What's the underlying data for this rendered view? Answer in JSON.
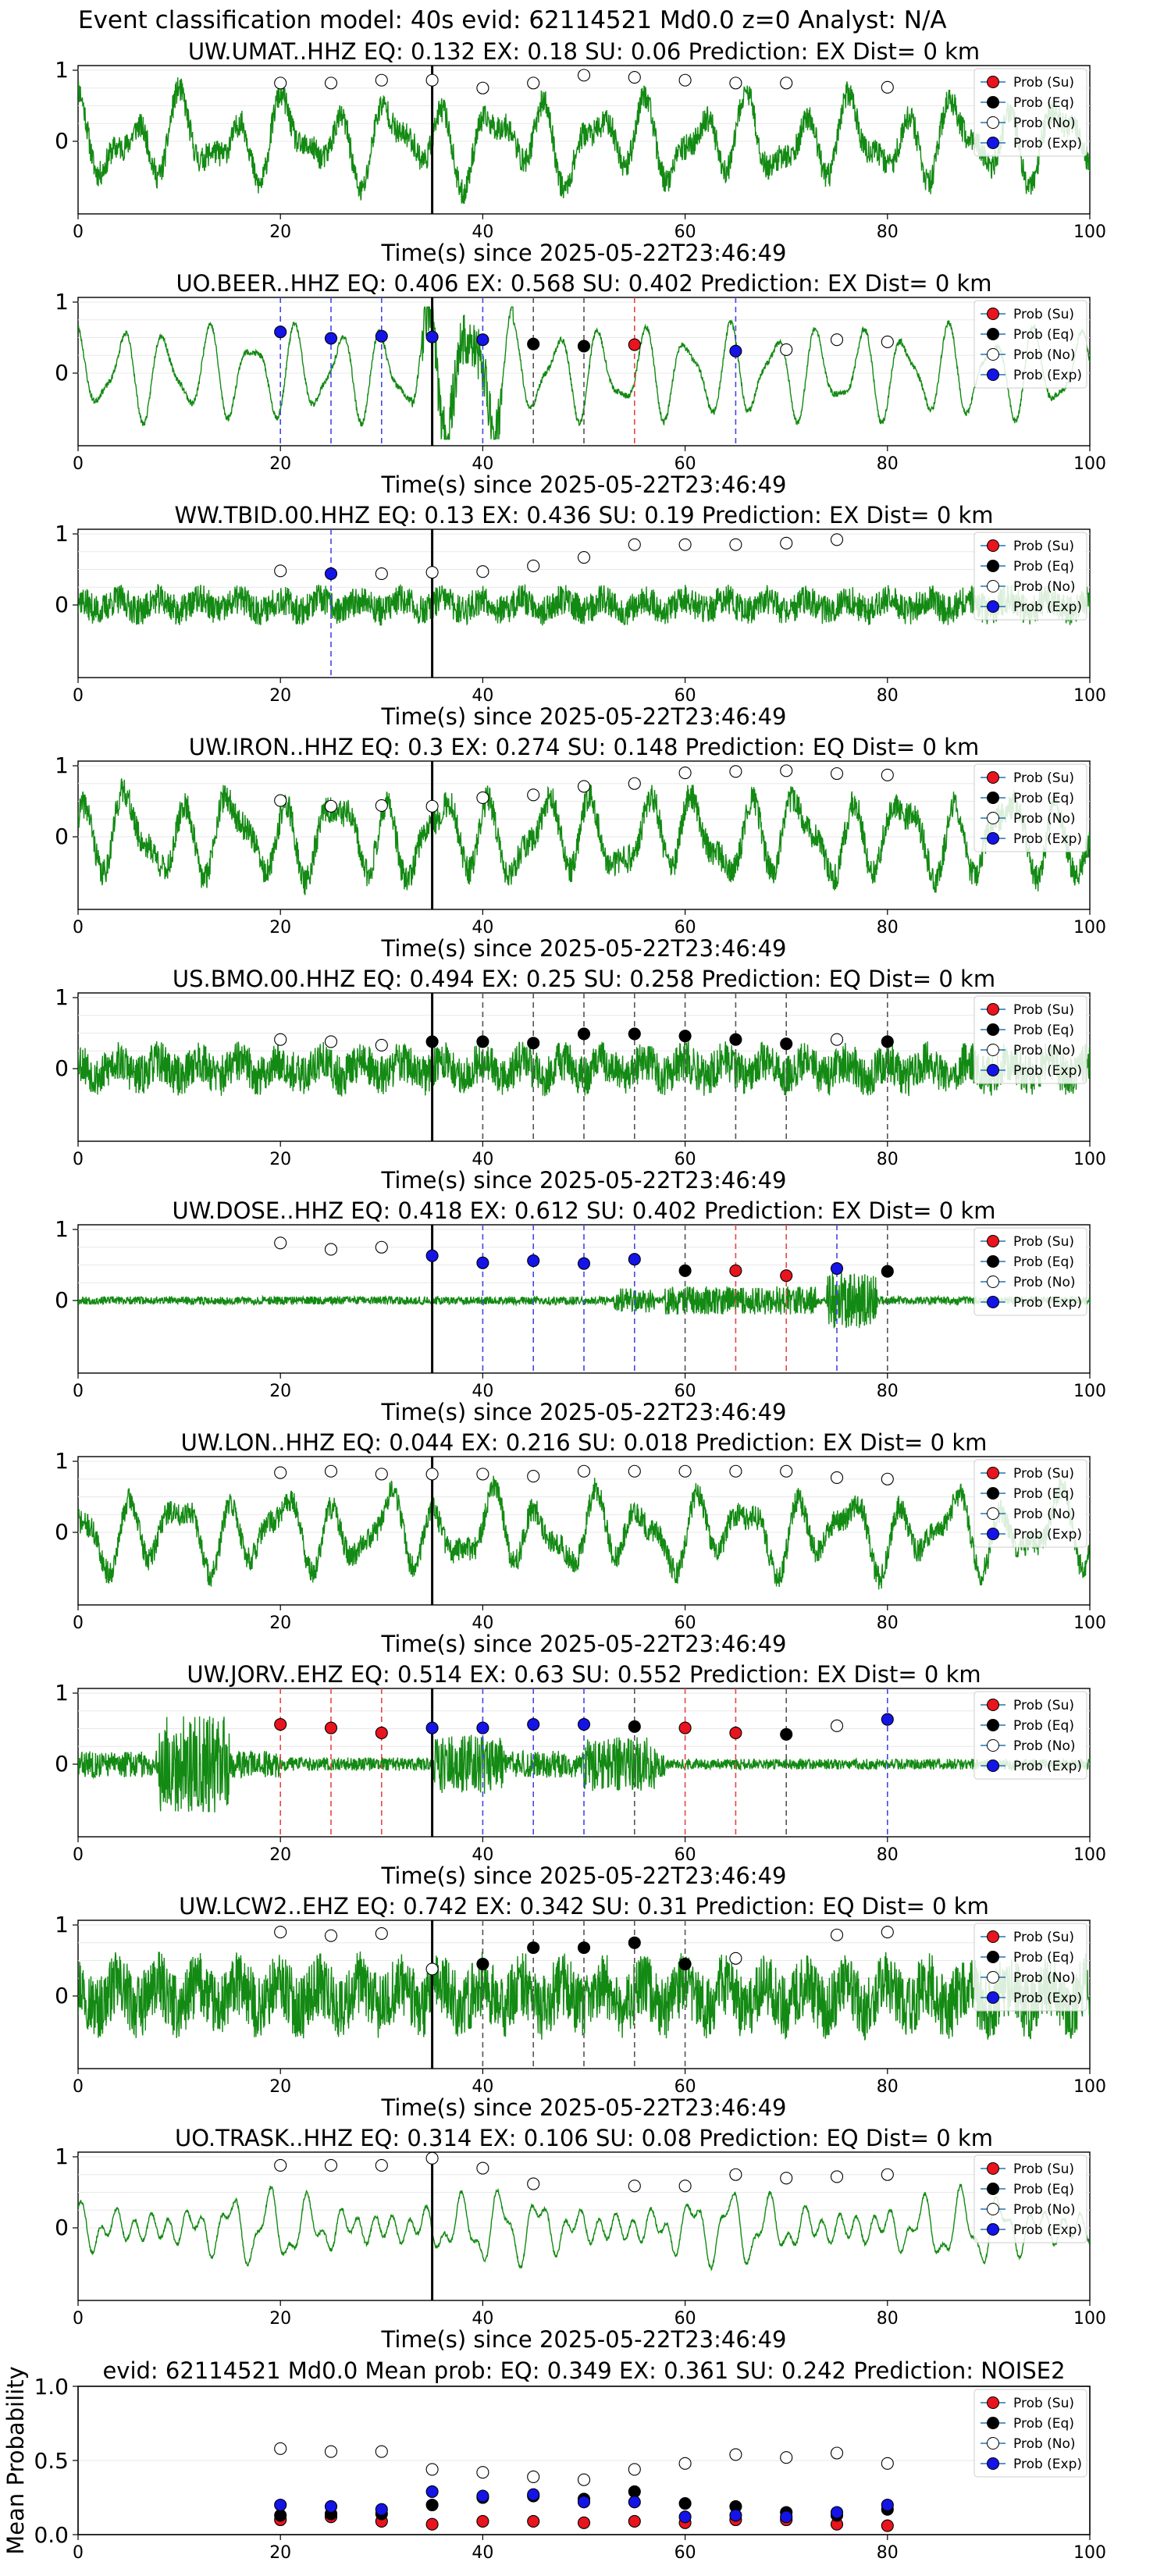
{
  "figure": {
    "suptitle": "Event classification model: 40s evid: 62114521 Md0.0 z=0 Analyst: N/A",
    "xlabel": "Time(s) since 2025-05-22T23:46:49"
  },
  "legend": {
    "entries": [
      {
        "label": "Prob (Su)",
        "color": "#e8141e"
      },
      {
        "label": "Prob (Eq)",
        "color": "#000000"
      },
      {
        "label": "Prob (No)",
        "color": "#ffffff"
      },
      {
        "label": "Prob (Exp)",
        "color": "#1414e6"
      }
    ]
  },
  "colors": {
    "waveform": "#138a13",
    "su": "#e8141e",
    "eq": "#000000",
    "no": "#ffffff",
    "exp": "#1414e6",
    "vline_su": "#e64646",
    "vline_eq": "#555555",
    "vline_exp": "#4646e6"
  },
  "chart_data": [
    {
      "type": "line",
      "station": "UW.UMAT..HHZ",
      "title": "UW.UMAT..HHZ   EQ: 0.132  EX: 0.18  SU: 0.06   Prediction: EX    Dist= 0 km",
      "xlim": [
        0,
        100
      ],
      "x_ticks": [
        0,
        20,
        40,
        60,
        80,
        100
      ],
      "y_ticks": [
        0,
        1
      ],
      "arrival_time": 35,
      "waveform": {
        "style": "lowfreq",
        "amp": 0.7,
        "seed": 11
      },
      "points": [
        [
          20,
          "no",
          0.82
        ],
        [
          25,
          "no",
          0.82
        ],
        [
          30,
          "no",
          0.86
        ],
        [
          35,
          "no",
          0.86
        ],
        [
          40,
          "no",
          0.75
        ],
        [
          45,
          "no",
          0.82
        ],
        [
          50,
          "no",
          0.93
        ],
        [
          55,
          "no",
          0.9
        ],
        [
          60,
          "no",
          0.86
        ],
        [
          65,
          "no",
          0.82
        ],
        [
          70,
          "no",
          0.82
        ],
        [
          80,
          "no",
          0.76
        ]
      ]
    },
    {
      "type": "line",
      "station": "UO.BEER..HHZ",
      "title": "UO.BEER..HHZ   EQ: 0.406  EX: 0.568  SU: 0.402   Prediction: EX    Dist= 0 km",
      "xlim": [
        0,
        100
      ],
      "x_ticks": [
        0,
        20,
        40,
        60,
        80,
        100
      ],
      "y_ticks": [
        0,
        1
      ],
      "arrival_time": 35,
      "waveform": {
        "style": "sinusoid",
        "amp": 0.75,
        "seed": 23
      },
      "points": [
        [
          20,
          "exp",
          0.58
        ],
        [
          25,
          "exp",
          0.49
        ],
        [
          30,
          "exp",
          0.52
        ],
        [
          35,
          "exp",
          0.51
        ],
        [
          40,
          "exp",
          0.47
        ],
        [
          45,
          "eq",
          0.41
        ],
        [
          50,
          "eq",
          0.38
        ],
        [
          55,
          "su",
          0.4
        ],
        [
          65,
          "exp",
          0.31
        ],
        [
          70,
          "no",
          0.33
        ],
        [
          75,
          "no",
          0.47
        ],
        [
          80,
          "no",
          0.44
        ]
      ]
    },
    {
      "type": "line",
      "station": "WW.TBID.00.HHZ",
      "title": "WW.TBID.00.HHZ   EQ: 0.13  EX: 0.436  SU: 0.19   Prediction: EX    Dist= 0 km",
      "xlim": [
        0,
        100
      ],
      "x_ticks": [
        0,
        20,
        40,
        60,
        80,
        100
      ],
      "y_ticks": [
        0,
        1
      ],
      "arrival_time": 35,
      "waveform": {
        "style": "noise",
        "amp": 0.28,
        "seed": 37
      },
      "points": [
        [
          20,
          "no",
          0.48
        ],
        [
          25,
          "exp",
          0.44
        ],
        [
          30,
          "no",
          0.44
        ],
        [
          35,
          "no",
          0.46
        ],
        [
          40,
          "no",
          0.47
        ],
        [
          45,
          "no",
          0.55
        ],
        [
          50,
          "no",
          0.67
        ],
        [
          55,
          "no",
          0.85
        ],
        [
          60,
          "no",
          0.85
        ],
        [
          65,
          "no",
          0.85
        ],
        [
          70,
          "no",
          0.87
        ],
        [
          75,
          "no",
          0.92
        ]
      ]
    },
    {
      "type": "line",
      "station": "UW.IRON..HHZ",
      "title": "UW.IRON..HHZ   EQ: 0.3  EX: 0.274  SU: 0.148   Prediction: EQ    Dist= 0 km",
      "xlim": [
        0,
        100
      ],
      "x_ticks": [
        0,
        20,
        40,
        60,
        80,
        100
      ],
      "y_ticks": [
        0,
        1
      ],
      "arrival_time": 35,
      "waveform": {
        "style": "lowfreq",
        "amp": 0.75,
        "seed": 41
      },
      "points": [
        [
          20,
          "no",
          0.51
        ],
        [
          25,
          "no",
          0.43
        ],
        [
          30,
          "no",
          0.44
        ],
        [
          35,
          "no",
          0.43
        ],
        [
          40,
          "no",
          0.55
        ],
        [
          45,
          "no",
          0.59
        ],
        [
          50,
          "no",
          0.71
        ],
        [
          55,
          "no",
          0.75
        ],
        [
          60,
          "no",
          0.9
        ],
        [
          65,
          "no",
          0.92
        ],
        [
          70,
          "no",
          0.93
        ],
        [
          75,
          "no",
          0.89
        ],
        [
          80,
          "no",
          0.87
        ]
      ]
    },
    {
      "type": "line",
      "station": "US.BMO.00.HHZ",
      "title": "US.BMO.00.HHZ   EQ: 0.494  EX: 0.25  SU: 0.258   Prediction: EQ    Dist= 0 km",
      "xlim": [
        0,
        100
      ],
      "x_ticks": [
        0,
        20,
        40,
        60,
        80,
        100
      ],
      "y_ticks": [
        0,
        1
      ],
      "arrival_time": 35,
      "waveform": {
        "style": "noise",
        "amp": 0.38,
        "seed": 53
      },
      "points": [
        [
          20,
          "no",
          0.41
        ],
        [
          25,
          "no",
          0.38
        ],
        [
          30,
          "no",
          0.33
        ],
        [
          35,
          "eq",
          0.38
        ],
        [
          40,
          "eq",
          0.38
        ],
        [
          45,
          "eq",
          0.36
        ],
        [
          50,
          "eq",
          0.49
        ],
        [
          55,
          "eq",
          0.49
        ],
        [
          60,
          "eq",
          0.46
        ],
        [
          65,
          "eq",
          0.41
        ],
        [
          70,
          "eq",
          0.35
        ],
        [
          75,
          "no",
          0.41
        ],
        [
          80,
          "eq",
          0.38
        ]
      ]
    },
    {
      "type": "line",
      "station": "UW.DOSE..HHZ",
      "title": "UW.DOSE..HHZ   EQ: 0.418  EX: 0.612  SU: 0.402   Prediction: EX    Dist= 0 km",
      "xlim": [
        0,
        100
      ],
      "x_ticks": [
        0,
        20,
        40,
        60,
        80,
        100
      ],
      "y_ticks": [
        0,
        1
      ],
      "arrival_time": 35,
      "waveform": {
        "style": "quiet",
        "amp": 0.06,
        "seed": 67
      },
      "points": [
        [
          20,
          "no",
          0.81
        ],
        [
          25,
          "no",
          0.72
        ],
        [
          30,
          "no",
          0.75
        ],
        [
          35,
          "exp",
          0.63
        ],
        [
          40,
          "exp",
          0.53
        ],
        [
          45,
          "exp",
          0.56
        ],
        [
          50,
          "exp",
          0.52
        ],
        [
          55,
          "exp",
          0.58
        ],
        [
          60,
          "eq",
          0.42
        ],
        [
          65,
          "su",
          0.42
        ],
        [
          70,
          "su",
          0.35
        ],
        [
          75,
          "exp",
          0.45
        ],
        [
          80,
          "eq",
          0.41
        ]
      ]
    },
    {
      "type": "line",
      "station": "UW.LON..HHZ",
      "title": "UW.LON..HHZ   EQ: 0.044  EX: 0.216  SU: 0.018   Prediction: EX    Dist= 0 km",
      "xlim": [
        0,
        100
      ],
      "x_ticks": [
        0,
        20,
        40,
        60,
        80,
        100
      ],
      "y_ticks": [
        0,
        1
      ],
      "arrival_time": 35,
      "waveform": {
        "style": "lowfreq",
        "amp": 0.65,
        "seed": 71
      },
      "points": [
        [
          20,
          "no",
          0.84
        ],
        [
          25,
          "no",
          0.86
        ],
        [
          30,
          "no",
          0.82
        ],
        [
          35,
          "no",
          0.82
        ],
        [
          40,
          "no",
          0.82
        ],
        [
          45,
          "no",
          0.79
        ],
        [
          50,
          "no",
          0.86
        ],
        [
          55,
          "no",
          0.86
        ],
        [
          60,
          "no",
          0.86
        ],
        [
          65,
          "no",
          0.86
        ],
        [
          70,
          "no",
          0.86
        ],
        [
          75,
          "no",
          0.77
        ],
        [
          80,
          "no",
          0.75
        ]
      ]
    },
    {
      "type": "line",
      "station": "UW.JORV..EHZ",
      "title": "UW.JORV..EHZ   EQ: 0.514  EX: 0.63  SU: 0.552   Prediction: EX    Dist= 0 km",
      "xlim": [
        0,
        100
      ],
      "x_ticks": [
        0,
        20,
        40,
        60,
        80,
        100
      ],
      "y_ticks": [
        0,
        1
      ],
      "arrival_time": 35,
      "waveform": {
        "style": "jorv",
        "amp": 0.2,
        "seed": 83
      },
      "points": [
        [
          20,
          "su",
          0.56
        ],
        [
          25,
          "su",
          0.51
        ],
        [
          30,
          "su",
          0.44
        ],
        [
          35,
          "exp",
          0.51
        ],
        [
          40,
          "exp",
          0.51
        ],
        [
          45,
          "exp",
          0.56
        ],
        [
          50,
          "exp",
          0.56
        ],
        [
          55,
          "eq",
          0.53
        ],
        [
          60,
          "su",
          0.51
        ],
        [
          65,
          "su",
          0.44
        ],
        [
          70,
          "eq",
          0.42
        ],
        [
          75,
          "no",
          0.54
        ],
        [
          80,
          "exp",
          0.63
        ]
      ]
    },
    {
      "type": "line",
      "station": "UW.LCW2..EHZ",
      "title": "UW.LCW2..EHZ   EQ: 0.742  EX: 0.342  SU: 0.31   Prediction: EQ    Dist= 0 km",
      "xlim": [
        0,
        100
      ],
      "x_ticks": [
        0,
        20,
        40,
        60,
        80,
        100
      ],
      "y_ticks": [
        0,
        1
      ],
      "arrival_time": 35,
      "waveform": {
        "style": "noise",
        "amp": 0.6,
        "seed": 97
      },
      "points": [
        [
          20,
          "no",
          0.9
        ],
        [
          25,
          "no",
          0.85
        ],
        [
          30,
          "no",
          0.88
        ],
        [
          35,
          "no",
          0.38
        ],
        [
          40,
          "eq",
          0.45
        ],
        [
          45,
          "eq",
          0.68
        ],
        [
          50,
          "eq",
          0.68
        ],
        [
          55,
          "eq",
          0.75
        ],
        [
          60,
          "eq",
          0.45
        ],
        [
          65,
          "no",
          0.53
        ],
        [
          75,
          "no",
          0.86
        ],
        [
          80,
          "no",
          0.9
        ]
      ]
    },
    {
      "type": "line",
      "station": "UO.TRASK..HHZ",
      "title": "UO.TRASK..HHZ   EQ: 0.314  EX: 0.106  SU: 0.08   Prediction: EQ    Dist= 0 km",
      "xlim": [
        0,
        100
      ],
      "x_ticks": [
        0,
        20,
        40,
        60,
        80,
        100
      ],
      "y_ticks": [
        0,
        1
      ],
      "arrival_time": 35,
      "waveform": {
        "style": "trask",
        "amp": 0.7,
        "seed": 101
      },
      "points": [
        [
          20,
          "no",
          0.88
        ],
        [
          25,
          "no",
          0.88
        ],
        [
          30,
          "no",
          0.88
        ],
        [
          35,
          "no",
          0.98
        ],
        [
          40,
          "no",
          0.84
        ],
        [
          45,
          "no",
          0.62
        ],
        [
          55,
          "no",
          0.59
        ],
        [
          60,
          "no",
          0.59
        ],
        [
          65,
          "no",
          0.75
        ],
        [
          70,
          "no",
          0.7
        ],
        [
          75,
          "no",
          0.72
        ],
        [
          80,
          "no",
          0.75
        ]
      ]
    },
    {
      "type": "scatter",
      "station": "",
      "title": "evid: 62114521  Md0.0   Mean prob:   EQ: 0.349  EX: 0.361  SU: 0.242   Prediction: NOISE2",
      "ylabel": "Mean Probability",
      "xlim": [
        0,
        100
      ],
      "ylim": [
        0,
        1
      ],
      "x_ticks": [
        0,
        20,
        40,
        60,
        80,
        100
      ],
      "y_ticks": [
        0.0,
        0.5,
        1.0
      ],
      "y_tick_labels": [
        "0.0",
        "0.5",
        "1.0"
      ],
      "series": [
        {
          "name": "Prob (Su)",
          "key": "su",
          "x": [
            20,
            25,
            30,
            35,
            40,
            45,
            50,
            55,
            60,
            65,
            70,
            75,
            80
          ],
          "values": [
            0.1,
            0.12,
            0.09,
            0.07,
            0.09,
            0.09,
            0.08,
            0.09,
            0.08,
            0.1,
            0.1,
            0.07,
            0.06
          ]
        },
        {
          "name": "Prob (Eq)",
          "key": "eq",
          "x": [
            20,
            25,
            30,
            35,
            40,
            45,
            50,
            55,
            60,
            65,
            70,
            75,
            80
          ],
          "values": [
            0.13,
            0.14,
            0.14,
            0.2,
            0.25,
            0.26,
            0.24,
            0.29,
            0.21,
            0.19,
            0.15,
            0.13,
            0.17
          ]
        },
        {
          "name": "Prob (No)",
          "key": "no",
          "x": [
            20,
            25,
            30,
            35,
            40,
            45,
            50,
            55,
            60,
            65,
            70,
            75,
            80
          ],
          "values": [
            0.58,
            0.56,
            0.56,
            0.44,
            0.42,
            0.39,
            0.37,
            0.44,
            0.48,
            0.54,
            0.52,
            0.55,
            0.48
          ]
        },
        {
          "name": "Prob (Exp)",
          "key": "exp",
          "x": [
            20,
            25,
            30,
            35,
            40,
            45,
            50,
            55,
            60,
            65,
            70,
            75,
            80
          ],
          "values": [
            0.2,
            0.19,
            0.17,
            0.29,
            0.26,
            0.27,
            0.22,
            0.22,
            0.12,
            0.13,
            0.12,
            0.15,
            0.2
          ]
        }
      ]
    }
  ]
}
